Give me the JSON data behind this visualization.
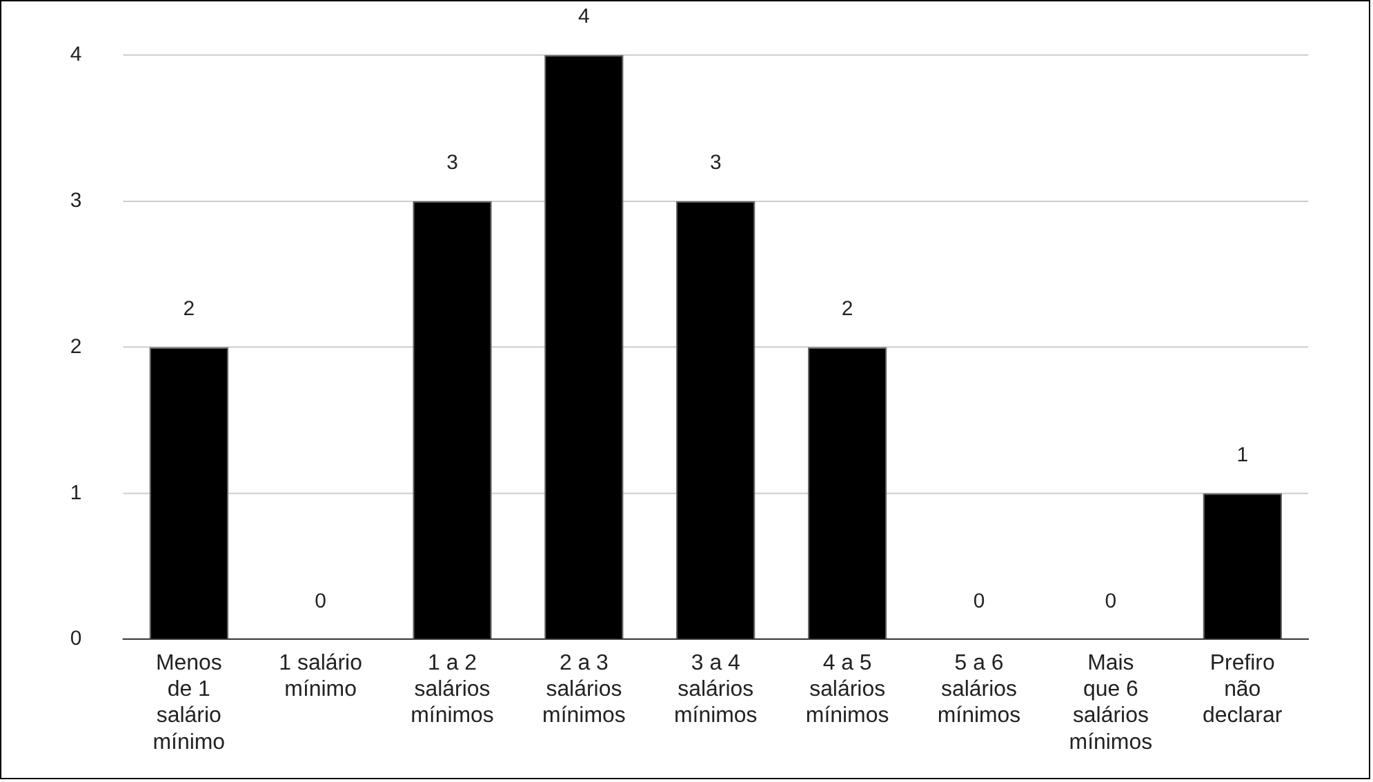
{
  "chart_data": {
    "type": "bar",
    "categories": [
      "Menos de 1 salário mínimo",
      "1 salário mínimo",
      "1 a 2 salários mínimos",
      "2 a 3 salários mínimos",
      "3 a 4 salários mínimos",
      "4 a 5 salários mínimos",
      "5 a 6 salários mínimos",
      "Mais que 6 salários mínimos",
      "Prefiro não declarar"
    ],
    "values": [
      2,
      0,
      3,
      4,
      3,
      2,
      0,
      0,
      1
    ],
    "color": "#000000",
    "ylim": [
      0,
      4
    ],
    "yticks": [
      0,
      1,
      2,
      3,
      4
    ],
    "grid": "y",
    "data_labels": true,
    "legend": false
  }
}
